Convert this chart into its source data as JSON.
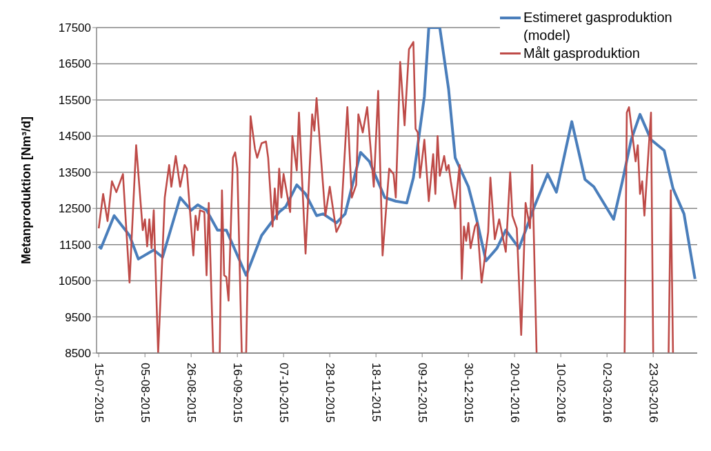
{
  "chart_data": {
    "type": "line",
    "ylabel": "Metanproduktion [Nm³/d]",
    "legend": "top right",
    "grid": "y",
    "ylim": [
      8500,
      17500
    ],
    "yticks": [
      8500,
      9500,
      10500,
      11500,
      12500,
      13500,
      14500,
      15500,
      16500,
      17500
    ],
    "xlim": [
      "2015-07-14",
      "2016-04-12"
    ],
    "xticks": [
      {
        "value": "2015-07-15",
        "label": "15-07-2015"
      },
      {
        "value": "2015-08-05",
        "label": "05-08-2015"
      },
      {
        "value": "2015-08-26",
        "label": "26-08-2015"
      },
      {
        "value": "2015-09-16",
        "label": "16-09-2015"
      },
      {
        "value": "2015-10-07",
        "label": "07-10-2015"
      },
      {
        "value": "2015-10-28",
        "label": "28-10-2015"
      },
      {
        "value": "2015-11-18",
        "label": "18-11-2015"
      },
      {
        "value": "2015-12-09",
        "label": "09-12-2015"
      },
      {
        "value": "2015-12-30",
        "label": "30-12-2015"
      },
      {
        "value": "2016-01-20",
        "label": "20-01-2016"
      },
      {
        "value": "2016-02-10",
        "label": "10-02-2016"
      },
      {
        "value": "2016-03-02",
        "label": "02-03-2016"
      },
      {
        "value": "2016-03-23",
        "label": "23-03-2016"
      }
    ],
    "series": [
      {
        "name": "Estimeret gasproduktion (model)",
        "color": "#4a7ebb",
        "x": [
          "2015-07-15",
          "2015-07-16",
          "2015-07-22",
          "2015-07-29",
          "2015-08-02",
          "2015-08-09",
          "2015-08-13",
          "2015-08-21",
          "2015-08-26",
          "2015-08-29",
          "2015-09-02",
          "2015-09-07",
          "2015-09-11",
          "2015-09-20",
          "2015-09-27",
          "2015-10-05",
          "2015-10-08",
          "2015-10-13",
          "2015-10-17",
          "2015-10-22",
          "2015-10-25",
          "2015-10-31",
          "2015-11-04",
          "2015-11-11",
          "2015-11-15",
          "2015-11-22",
          "2015-11-27",
          "2015-12-02",
          "2015-12-05",
          "2015-12-10",
          "2015-12-12",
          "2015-12-17",
          "2015-12-21",
          "2015-12-24",
          "2015-12-30",
          "2016-01-02",
          "2016-01-07",
          "2016-01-12",
          "2016-01-16",
          "2016-01-22",
          "2016-01-29",
          "2016-02-04",
          "2016-02-08",
          "2016-02-15",
          "2016-02-21",
          "2016-02-25",
          "2016-02-29",
          "2016-03-05",
          "2016-03-09",
          "2016-03-13",
          "2016-03-17",
          "2016-03-22",
          "2016-03-28",
          "2016-04-01",
          "2016-04-06",
          "2016-04-11"
        ],
        "values": [
          11450,
          11400,
          12300,
          11750,
          11100,
          11350,
          11150,
          12800,
          12450,
          12600,
          12450,
          11900,
          11900,
          10650,
          11750,
          12400,
          12550,
          13150,
          12900,
          12300,
          12350,
          12100,
          12350,
          14050,
          13800,
          12800,
          12700,
          12650,
          13350,
          15600,
          17500,
          17500,
          15800,
          13900,
          13100,
          12400,
          11050,
          11400,
          11900,
          11400,
          12550,
          13450,
          12950,
          14900,
          13300,
          13100,
          12700,
          12200,
          13250,
          14400,
          15100,
          14400,
          14100,
          13050,
          12350,
          10550
        ]
      },
      {
        "name": "Målt gasproduktion",
        "color": "#be4b48",
        "x": [
          "2015-07-15",
          "2015-07-17",
          "2015-07-19",
          "2015-07-21",
          "2015-07-23",
          "2015-07-26",
          "2015-07-29",
          "2015-08-01",
          "2015-08-04",
          "2015-08-05",
          "2015-08-06",
          "2015-08-07",
          "2015-08-08",
          "2015-08-09",
          "2015-08-11",
          "2015-08-13",
          "2015-08-14",
          "2015-08-16",
          "2015-08-17",
          "2015-08-19",
          "2015-08-21",
          "2015-08-23",
          "2015-08-24",
          "2015-08-27",
          "2015-08-28",
          "2015-08-29",
          "2015-08-30",
          "2015-09-01",
          "2015-09-02",
          "2015-09-03",
          "2015-09-05",
          "2015-09-08",
          "2015-09-09",
          "2015-09-10",
          "2015-09-11",
          "2015-09-12",
          "2015-09-14",
          "2015-09-15",
          "2015-09-16",
          "2015-09-18",
          "2015-09-20",
          "2015-09-22",
          "2015-09-24",
          "2015-09-25",
          "2015-09-27",
          "2015-09-29",
          "2015-09-30",
          "2015-10-02",
          "2015-10-03",
          "2015-10-04",
          "2015-10-05",
          "2015-10-06",
          "2015-10-07",
          "2015-10-10",
          "2015-10-11",
          "2015-10-13",
          "2015-10-14",
          "2015-10-17",
          "2015-10-20",
          "2015-10-21",
          "2015-10-22",
          "2015-10-24",
          "2015-10-26",
          "2015-10-28",
          "2015-10-31",
          "2015-11-02",
          "2015-11-05",
          "2015-11-07",
          "2015-11-09",
          "2015-11-10",
          "2015-11-12",
          "2015-11-14",
          "2015-11-17",
          "2015-11-19",
          "2015-11-21",
          "2015-11-24",
          "2015-11-26",
          "2015-11-27",
          "2015-11-29",
          "2015-12-01",
          "2015-12-03",
          "2015-12-05",
          "2015-12-06",
          "2015-12-07",
          "2015-12-08",
          "2015-12-10",
          "2015-12-12",
          "2015-12-14",
          "2015-12-15",
          "2015-12-16",
          "2015-12-17",
          "2015-12-19",
          "2015-12-20",
          "2015-12-21",
          "2015-12-22",
          "2015-12-24",
          "2015-12-26",
          "2015-12-27",
          "2015-12-28",
          "2015-12-29",
          "2015-12-30",
          "2015-12-31",
          "2016-01-02",
          "2016-01-03",
          "2016-01-05",
          "2016-01-08",
          "2016-01-09",
          "2016-01-11",
          "2016-01-13",
          "2016-01-16",
          "2016-01-18",
          "2016-01-19",
          "2016-01-21",
          "2016-01-23",
          "2016-01-25",
          "2016-01-27",
          "2016-01-28",
          "2016-01-30",
          "2016-02-19",
          "2016-03-10",
          "2016-03-11",
          "2016-03-12",
          "2016-03-15",
          "2016-03-16",
          "2016-03-17",
          "2016-03-18",
          "2016-03-19",
          "2016-03-22",
          "2016-03-23",
          "2016-03-27",
          "2016-03-30",
          "2016-03-31",
          "2016-04-01"
        ],
        "values": [
          11950,
          12900,
          12150,
          13250,
          12950,
          13450,
          10450,
          14250,
          11900,
          12200,
          11450,
          12200,
          11400,
          12450,
          8500,
          11300,
          12800,
          13700,
          13100,
          13950,
          13100,
          13700,
          13600,
          11200,
          12300,
          11900,
          12450,
          12400,
          10650,
          12650,
          8500,
          8500,
          13000,
          10650,
          10600,
          9950,
          13900,
          14050,
          13600,
          8500,
          8500,
          15050,
          14150,
          13900,
          14300,
          14350,
          13900,
          12000,
          13050,
          12200,
          13600,
          12800,
          13450,
          12400,
          14500,
          13550,
          15150,
          11250,
          15100,
          14650,
          15550,
          13900,
          12300,
          13100,
          11850,
          12100,
          15300,
          12800,
          13150,
          15100,
          14600,
          15300,
          13100,
          15750,
          11200,
          13600,
          13450,
          12800,
          16550,
          14800,
          16900,
          17100,
          14700,
          14600,
          13350,
          14400,
          12700,
          14000,
          12900,
          14500,
          13400,
          13950,
          13550,
          13700,
          13250,
          12500,
          13700,
          10550,
          12000,
          11600,
          12100,
          11400,
          12000,
          12100,
          10450,
          11850,
          13350,
          11650,
          12200,
          11300,
          13500,
          12300,
          11950,
          9000,
          12650,
          11950,
          13700,
          8500,
          null,
          8500,
          15150,
          15300,
          13800,
          14250,
          12900,
          13250,
          12300,
          15150,
          8500,
          null,
          8500,
          13000,
          8500
        ]
      }
    ]
  }
}
